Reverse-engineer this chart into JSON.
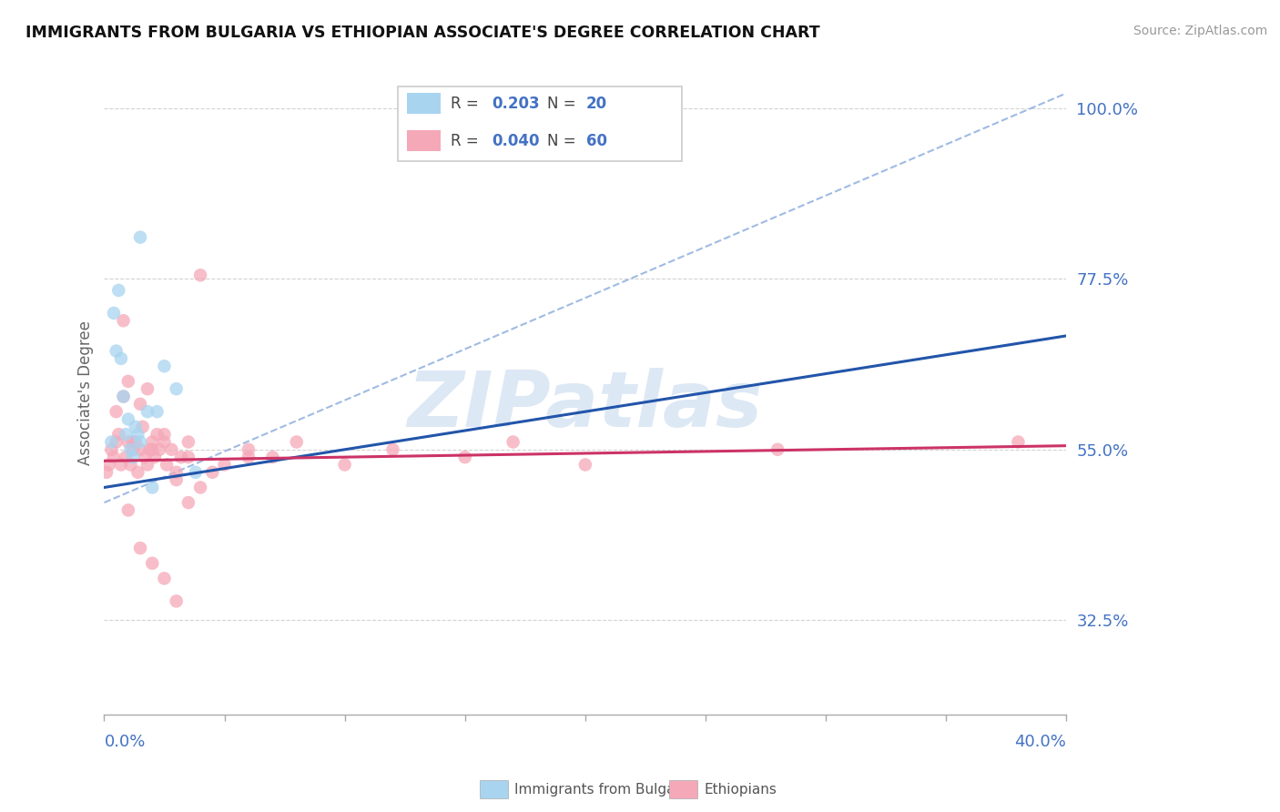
{
  "title": "IMMIGRANTS FROM BULGARIA VS ETHIOPIAN ASSOCIATE'S DEGREE CORRELATION CHART",
  "source": "Source: ZipAtlas.com",
  "ylabel": "Associate's Degree",
  "bg_color": "#ffffff",
  "grid_color": "#c8c8c8",
  "axis_label_color": "#4472c4",
  "bulgaria_color": "#a8d4f0",
  "ethiopian_color": "#f5a8b8",
  "bulgaria_line_color": "#2255aa",
  "ethiopian_line_color": "#cc3366",
  "dashed_line_color": "#88aadd",
  "watermark_color": "#dde8f5",
  "xmin": 0.0,
  "xmax": 0.4,
  "ymin": 0.2,
  "ymax": 1.05,
  "yticks": [
    0.325,
    0.55,
    0.775,
    1.0
  ],
  "ytick_labels": [
    "32.5%",
    "55.0%",
    "77.5%",
    "100.0%"
  ],
  "legend_r1": "R = ",
  "legend_r1_val": "0.203",
  "legend_n1": "N = ",
  "legend_n1_val": "20",
  "legend_r2": "R = ",
  "legend_r2_val": "0.040",
  "legend_n2": "N = ",
  "legend_n2_val": "60",
  "bulgaria_scatter_x": [
    0.003,
    0.004,
    0.005,
    0.006,
    0.007,
    0.008,
    0.009,
    0.01,
    0.011,
    0.012,
    0.013,
    0.014,
    0.015,
    0.018,
    0.02,
    0.025,
    0.03,
    0.038,
    0.015,
    0.022
  ],
  "bulgaria_scatter_y": [
    0.56,
    0.73,
    0.68,
    0.76,
    0.67,
    0.62,
    0.57,
    0.59,
    0.55,
    0.54,
    0.58,
    0.57,
    0.56,
    0.6,
    0.5,
    0.66,
    0.63,
    0.52,
    0.83,
    0.6
  ],
  "ethiopian_scatter_x": [
    0.001,
    0.002,
    0.003,
    0.004,
    0.005,
    0.006,
    0.007,
    0.008,
    0.009,
    0.01,
    0.011,
    0.012,
    0.013,
    0.014,
    0.015,
    0.016,
    0.017,
    0.018,
    0.019,
    0.02,
    0.021,
    0.022,
    0.023,
    0.025,
    0.026,
    0.028,
    0.03,
    0.032,
    0.035,
    0.005,
    0.008,
    0.01,
    0.012,
    0.015,
    0.018,
    0.02,
    0.025,
    0.03,
    0.035,
    0.04,
    0.06,
    0.07,
    0.08,
    0.1,
    0.12,
    0.15,
    0.17,
    0.2,
    0.28,
    0.38,
    0.01,
    0.015,
    0.02,
    0.025,
    0.03,
    0.035,
    0.04,
    0.045,
    0.05,
    0.06
  ],
  "ethiopian_scatter_y": [
    0.52,
    0.53,
    0.55,
    0.54,
    0.56,
    0.57,
    0.53,
    0.72,
    0.54,
    0.56,
    0.53,
    0.55,
    0.56,
    0.52,
    0.55,
    0.58,
    0.54,
    0.53,
    0.55,
    0.56,
    0.54,
    0.57,
    0.55,
    0.56,
    0.53,
    0.55,
    0.51,
    0.54,
    0.56,
    0.6,
    0.62,
    0.64,
    0.56,
    0.61,
    0.63,
    0.55,
    0.57,
    0.52,
    0.54,
    0.78,
    0.55,
    0.54,
    0.56,
    0.53,
    0.55,
    0.54,
    0.56,
    0.53,
    0.55,
    0.56,
    0.47,
    0.42,
    0.4,
    0.38,
    0.35,
    0.48,
    0.5,
    0.52,
    0.53,
    0.54
  ],
  "dashed_line_x0": 0.0,
  "dashed_line_y0": 0.48,
  "dashed_line_x1": 0.4,
  "dashed_line_y1": 1.02
}
